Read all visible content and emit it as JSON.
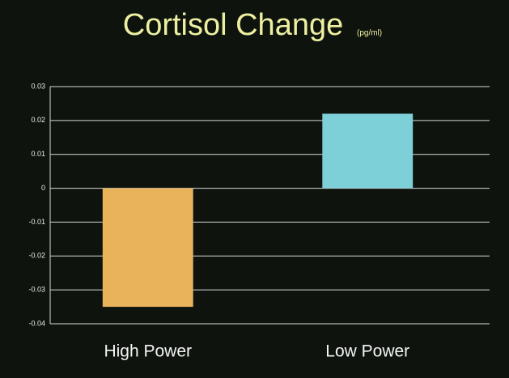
{
  "chart_data": {
    "type": "bar",
    "title": "Cortisol Change",
    "subtitle": "(pg/ml)",
    "categories": [
      "High Power",
      "Low Power"
    ],
    "values": [
      -0.035,
      0.022
    ],
    "colors": [
      "#e9b35b",
      "#7dd0d7"
    ],
    "ylim": [
      -0.04,
      0.03
    ],
    "yticks": [
      -0.04,
      -0.03,
      -0.02,
      -0.01,
      0,
      0.01,
      0.02,
      0.03
    ],
    "grid": true
  }
}
